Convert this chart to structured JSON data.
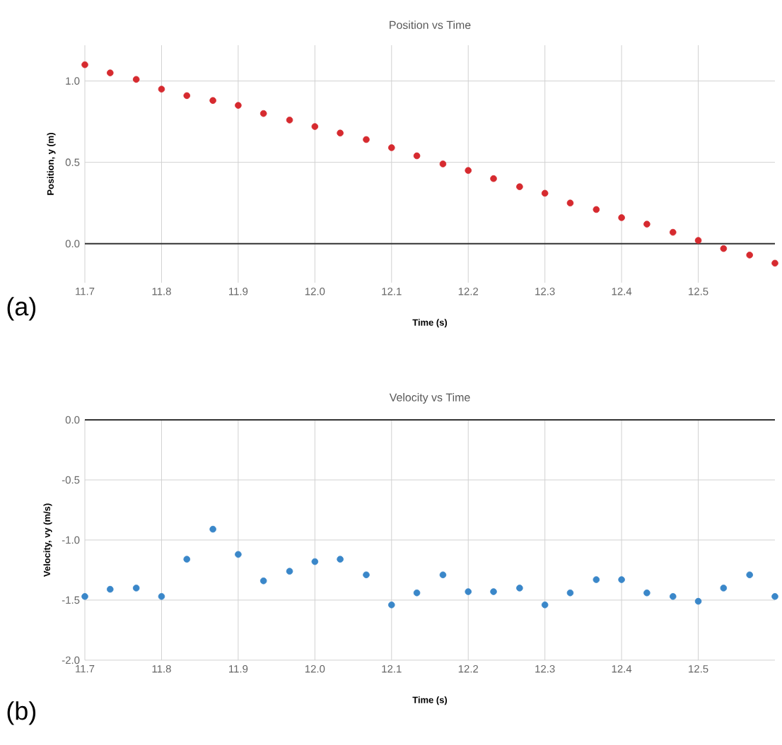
{
  "chart_data": [
    {
      "type": "scatter",
      "title": "Position vs Time",
      "xlabel": "Time (s)",
      "ylabel": "Position, y (m)",
      "x": [
        11.7,
        11.733,
        11.767,
        11.8,
        11.833,
        11.867,
        11.9,
        11.933,
        11.967,
        12.0,
        12.033,
        12.067,
        12.1,
        12.133,
        12.167,
        12.2,
        12.233,
        12.267,
        12.3,
        12.333,
        12.367,
        12.4,
        12.433,
        12.467,
        12.5,
        12.533,
        12.567,
        12.6
      ],
      "series": [
        {
          "color": "#d62a2f",
          "values": [
            1.1,
            1.05,
            1.01,
            0.95,
            0.91,
            0.88,
            0.85,
            0.8,
            0.76,
            0.72,
            0.68,
            0.64,
            0.59,
            0.54,
            0.49,
            0.45,
            0.4,
            0.35,
            0.31,
            0.25,
            0.21,
            0.16,
            0.12,
            0.07,
            0.02,
            -0.03,
            -0.07,
            -0.12
          ]
        }
      ],
      "xlim": [
        11.7,
        12.6
      ],
      "ylim": [
        -0.24,
        1.22
      ],
      "xticks": [
        11.7,
        11.8,
        11.9,
        {
          "value": 12.0,
          "label": "12.0"
        },
        12.1,
        12.2,
        12.3,
        12.4,
        12.5
      ],
      "yticks": [
        {
          "value": 0,
          "label": "0.0"
        },
        {
          "value": 0.5,
          "label": "0.5"
        },
        {
          "value": 1,
          "label": "1.0"
        }
      ],
      "ref_lines": [
        {
          "axis": "y",
          "value": 0,
          "color": "#333333"
        }
      ],
      "grid": true,
      "annotations": [
        "(a)"
      ]
    },
    {
      "type": "scatter",
      "title": "Velocity vs Time",
      "xlabel": "Time (s)",
      "ylabel": "Velocity, vy (m/s)",
      "x": [
        11.7,
        11.733,
        11.767,
        11.8,
        11.833,
        11.867,
        11.9,
        11.933,
        11.967,
        12.0,
        12.033,
        12.067,
        12.1,
        12.133,
        12.167,
        12.2,
        12.233,
        12.267,
        12.3,
        12.333,
        12.367,
        12.4,
        12.433,
        12.467,
        12.5,
        12.533,
        12.567,
        12.6
      ],
      "series": [
        {
          "color": "#3a87c9",
          "values": [
            -1.47,
            -1.41,
            -1.4,
            -1.47,
            -1.16,
            -0.91,
            -1.12,
            -1.34,
            -1.26,
            -1.18,
            -1.16,
            -1.29,
            -1.54,
            -1.44,
            -1.29,
            -1.43,
            -1.43,
            -1.4,
            -1.54,
            -1.44,
            -1.33,
            -1.33,
            -1.44,
            -1.47,
            -1.51,
            -1.4,
            -1.29,
            -1.47
          ]
        }
      ],
      "xlim": [
        11.7,
        12.6
      ],
      "ylim": [
        -2.0,
        0.0
      ],
      "xticks": [
        11.7,
        11.8,
        11.9,
        {
          "value": 12.0,
          "label": "12.0"
        },
        12.1,
        12.2,
        12.3,
        12.4,
        12.5
      ],
      "yticks": [
        {
          "value": -2,
          "label": "-2.0"
        },
        {
          "value": -1.5,
          "label": "-1.5"
        },
        {
          "value": -1,
          "label": "-1.0"
        },
        {
          "value": -0.5,
          "label": "-0.5"
        },
        {
          "value": 0,
          "label": "0.0"
        }
      ],
      "ref_lines": [
        {
          "axis": "y",
          "value": 0,
          "color": "#333333"
        }
      ],
      "grid": true,
      "annotations": [
        "(b)"
      ]
    }
  ]
}
